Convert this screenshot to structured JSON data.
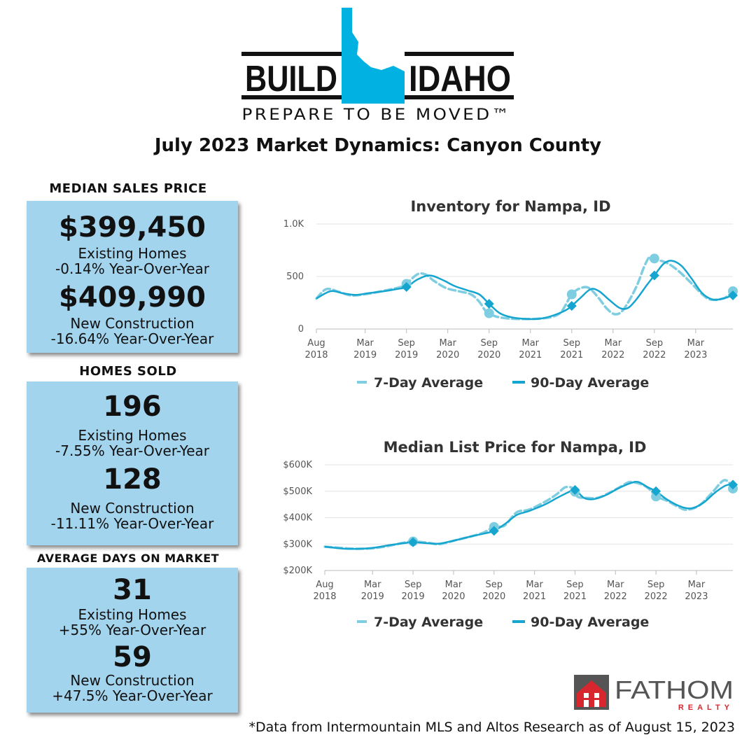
{
  "header": {
    "logo_left": "BUILD",
    "logo_right": "IDAHO",
    "tagline": "PREPARE TO BE MOVED™",
    "title": "July 2023 Market Dynamics: Canyon County"
  },
  "stats": {
    "median_sales_price": {
      "heading": "MEDIAN SALES PRICE",
      "existing_value": "$399,450",
      "existing_label": "Existing Homes",
      "existing_change": "-0.14% Year-Over-Year",
      "new_value": "$409,990",
      "new_label": "New Construction",
      "new_change": "-16.64% Year-Over-Year"
    },
    "homes_sold": {
      "heading": "HOMES SOLD",
      "existing_value": "196",
      "existing_label": "Existing Homes",
      "existing_change": "-7.55% Year-Over-Year",
      "new_value": "128",
      "new_label": "New Construction",
      "new_change": "-11.11% Year-Over-Year"
    },
    "days_on_market": {
      "heading": "AVERAGE DAYS ON MARKET",
      "existing_value": "31",
      "existing_label": "Existing Homes",
      "existing_change": "+55% Year-Over-Year",
      "new_value": "59",
      "new_label": "New Construction",
      "new_change": "+47.5% Year-Over-Year"
    }
  },
  "colors": {
    "brand_blue": "#00b1e1",
    "box_fill": "#a3d4ee",
    "seven_day": "#7fcde0",
    "ninety_day": "#16a5cf",
    "fathom_red": "#d7262e",
    "fathom_gray": "#555555"
  },
  "chart_data": [
    {
      "type": "line",
      "title": "Inventory for Nampa, ID",
      "yticks": [
        "0",
        "500",
        "1.0K"
      ],
      "ylim": [
        0,
        1000
      ],
      "xlim": [
        2018.58,
        2023.62
      ],
      "xticks": [
        {
          "t": 2018.58,
          "line1": "Aug",
          "line2": "2018"
        },
        {
          "t": 2019.17,
          "line1": "Mar",
          "line2": "2019"
        },
        {
          "t": 2019.67,
          "line1": "Sep",
          "line2": "2019"
        },
        {
          "t": 2020.17,
          "line1": "Mar",
          "line2": "2020"
        },
        {
          "t": 2020.67,
          "line1": "Sep",
          "line2": "2020"
        },
        {
          "t": 2021.17,
          "line1": "Mar",
          "line2": "2021"
        },
        {
          "t": 2021.67,
          "line1": "Sep",
          "line2": "2021"
        },
        {
          "t": 2022.17,
          "line1": "Mar",
          "line2": "2022"
        },
        {
          "t": 2022.67,
          "line1": "Sep",
          "line2": "2022"
        },
        {
          "t": 2023.17,
          "line1": "Mar",
          "line2": "2023"
        }
      ],
      "legend": [
        "7-Day Average",
        "90-Day Average"
      ],
      "legend_position": "bottom",
      "grid": true,
      "series": [
        {
          "name": "7-Day Average",
          "points": [
            [
              2018.58,
              290
            ],
            [
              2018.7,
              380
            ],
            [
              2018.85,
              355
            ],
            [
              2019.0,
              320
            ],
            [
              2019.2,
              335
            ],
            [
              2019.4,
              365
            ],
            [
              2019.6,
              400
            ],
            [
              2019.67,
              430
            ],
            [
              2019.8,
              520
            ],
            [
              2019.9,
              520
            ],
            [
              2020.0,
              460
            ],
            [
              2020.15,
              390
            ],
            [
              2020.3,
              360
            ],
            [
              2020.45,
              330
            ],
            [
              2020.55,
              260
            ],
            [
              2020.62,
              180
            ],
            [
              2020.67,
              150
            ],
            [
              2020.75,
              120
            ],
            [
              2020.9,
              100
            ],
            [
              2021.1,
              95
            ],
            [
              2021.3,
              100
            ],
            [
              2021.45,
              120
            ],
            [
              2021.55,
              170
            ],
            [
              2021.67,
              330
            ],
            [
              2021.78,
              390
            ],
            [
              2021.88,
              390
            ],
            [
              2022.0,
              290
            ],
            [
              2022.1,
              190
            ],
            [
              2022.2,
              140
            ],
            [
              2022.3,
              190
            ],
            [
              2022.45,
              400
            ],
            [
              2022.55,
              600
            ],
            [
              2022.62,
              690
            ],
            [
              2022.7,
              660
            ],
            [
              2022.82,
              630
            ],
            [
              2022.95,
              560
            ],
            [
              2023.1,
              450
            ],
            [
              2023.25,
              330
            ],
            [
              2023.35,
              280
            ],
            [
              2023.5,
              290
            ],
            [
              2023.58,
              330
            ],
            [
              2023.62,
              360
            ]
          ]
        },
        {
          "name": "90-Day Average",
          "points": [
            [
              2018.58,
              290
            ],
            [
              2018.75,
              360
            ],
            [
              2018.9,
              340
            ],
            [
              2019.05,
              325
            ],
            [
              2019.2,
              340
            ],
            [
              2019.4,
              360
            ],
            [
              2019.55,
              380
            ],
            [
              2019.67,
              400
            ],
            [
              2019.8,
              470
            ],
            [
              2019.95,
              510
            ],
            [
              2020.1,
              470
            ],
            [
              2020.25,
              410
            ],
            [
              2020.4,
              370
            ],
            [
              2020.55,
              330
            ],
            [
              2020.67,
              240
            ],
            [
              2020.8,
              150
            ],
            [
              2020.95,
              110
            ],
            [
              2021.15,
              95
            ],
            [
              2021.3,
              100
            ],
            [
              2021.45,
              130
            ],
            [
              2021.6,
              180
            ],
            [
              2021.67,
              220
            ],
            [
              2021.78,
              300
            ],
            [
              2021.9,
              380
            ],
            [
              2022.0,
              360
            ],
            [
              2022.12,
              280
            ],
            [
              2022.25,
              200
            ],
            [
              2022.35,
              200
            ],
            [
              2022.45,
              280
            ],
            [
              2022.58,
              420
            ],
            [
              2022.67,
              510
            ],
            [
              2022.78,
              620
            ],
            [
              2022.88,
              650
            ],
            [
              2023.0,
              600
            ],
            [
              2023.12,
              480
            ],
            [
              2023.25,
              340
            ],
            [
              2023.38,
              280
            ],
            [
              2023.5,
              290
            ],
            [
              2023.58,
              310
            ],
            [
              2023.62,
              320
            ]
          ]
        }
      ]
    },
    {
      "type": "line",
      "title": "Median List Price for Nampa, ID",
      "yticks": [
        "$200K",
        "$300K",
        "$400K",
        "$500K",
        "$600K"
      ],
      "ylim": [
        200000,
        600000
      ],
      "xlim": [
        2018.58,
        2023.62
      ],
      "xticks": [
        {
          "t": 2018.58,
          "line1": "Aug",
          "line2": "2018"
        },
        {
          "t": 2019.17,
          "line1": "Mar",
          "line2": "2019"
        },
        {
          "t": 2019.67,
          "line1": "Sep",
          "line2": "2019"
        },
        {
          "t": 2020.17,
          "line1": "Mar",
          "line2": "2020"
        },
        {
          "t": 2020.67,
          "line1": "Sep",
          "line2": "2020"
        },
        {
          "t": 2021.17,
          "line1": "Mar",
          "line2": "2021"
        },
        {
          "t": 2021.67,
          "line1": "Sep",
          "line2": "2021"
        },
        {
          "t": 2022.17,
          "line1": "Mar",
          "line2": "2022"
        },
        {
          "t": 2022.67,
          "line1": "Sep",
          "line2": "2022"
        },
        {
          "t": 2023.17,
          "line1": "Mar",
          "line2": "2023"
        }
      ],
      "legend": [
        "7-Day Average",
        "90-Day Average"
      ],
      "legend_position": "bottom",
      "grid": true,
      "series": [
        {
          "name": "7-Day Average",
          "points": [
            [
              2018.58,
              290000
            ],
            [
              2018.8,
              285000
            ],
            [
              2019.0,
              282000
            ],
            [
              2019.2,
              285000
            ],
            [
              2019.4,
              295000
            ],
            [
              2019.55,
              305000
            ],
            [
              2019.67,
              310000
            ],
            [
              2019.85,
              305000
            ],
            [
              2020.0,
              300000
            ],
            [
              2020.2,
              315000
            ],
            [
              2020.4,
              330000
            ],
            [
              2020.55,
              345000
            ],
            [
              2020.67,
              365000
            ],
            [
              2020.8,
              370000
            ],
            [
              2020.95,
              420000
            ],
            [
              2021.1,
              430000
            ],
            [
              2021.3,
              460000
            ],
            [
              2021.45,
              490000
            ],
            [
              2021.55,
              515000
            ],
            [
              2021.65,
              510000
            ],
            [
              2021.7,
              480000
            ],
            [
              2021.8,
              475000
            ],
            [
              2021.95,
              475000
            ],
            [
              2022.1,
              495000
            ],
            [
              2022.25,
              520000
            ],
            [
              2022.35,
              535000
            ],
            [
              2022.5,
              525000
            ],
            [
              2022.6,
              505000
            ],
            [
              2022.67,
              480000
            ],
            [
              2022.8,
              465000
            ],
            [
              2022.95,
              440000
            ],
            [
              2023.05,
              430000
            ],
            [
              2023.2,
              445000
            ],
            [
              2023.35,
              490000
            ],
            [
              2023.5,
              540000
            ],
            [
              2023.58,
              530000
            ],
            [
              2023.62,
              510000
            ]
          ]
        },
        {
          "name": "90-Day Average",
          "points": [
            [
              2018.58,
              290000
            ],
            [
              2018.8,
              283000
            ],
            [
              2019.0,
              282000
            ],
            [
              2019.2,
              287000
            ],
            [
              2019.4,
              297000
            ],
            [
              2019.55,
              303000
            ],
            [
              2019.67,
              307000
            ],
            [
              2019.85,
              303000
            ],
            [
              2020.0,
              302000
            ],
            [
              2020.2,
              315000
            ],
            [
              2020.4,
              330000
            ],
            [
              2020.55,
              340000
            ],
            [
              2020.67,
              350000
            ],
            [
              2020.8,
              375000
            ],
            [
              2020.95,
              410000
            ],
            [
              2021.1,
              425000
            ],
            [
              2021.3,
              450000
            ],
            [
              2021.45,
              475000
            ],
            [
              2021.58,
              495000
            ],
            [
              2021.67,
              505000
            ],
            [
              2021.78,
              475000
            ],
            [
              2021.9,
              470000
            ],
            [
              2022.05,
              485000
            ],
            [
              2022.2,
              510000
            ],
            [
              2022.35,
              530000
            ],
            [
              2022.45,
              535000
            ],
            [
              2022.57,
              515000
            ],
            [
              2022.67,
              500000
            ],
            [
              2022.8,
              470000
            ],
            [
              2022.95,
              445000
            ],
            [
              2023.1,
              435000
            ],
            [
              2023.25,
              455000
            ],
            [
              2023.4,
              495000
            ],
            [
              2023.52,
              520000
            ],
            [
              2023.58,
              525000
            ],
            [
              2023.62,
              525000
            ]
          ]
        }
      ]
    }
  ],
  "footer": {
    "credit": "*Data from Intermountain MLS and Altos Research as of August 15, 2023",
    "brand_name": "FATHOM",
    "brand_sub": "REALTY"
  }
}
